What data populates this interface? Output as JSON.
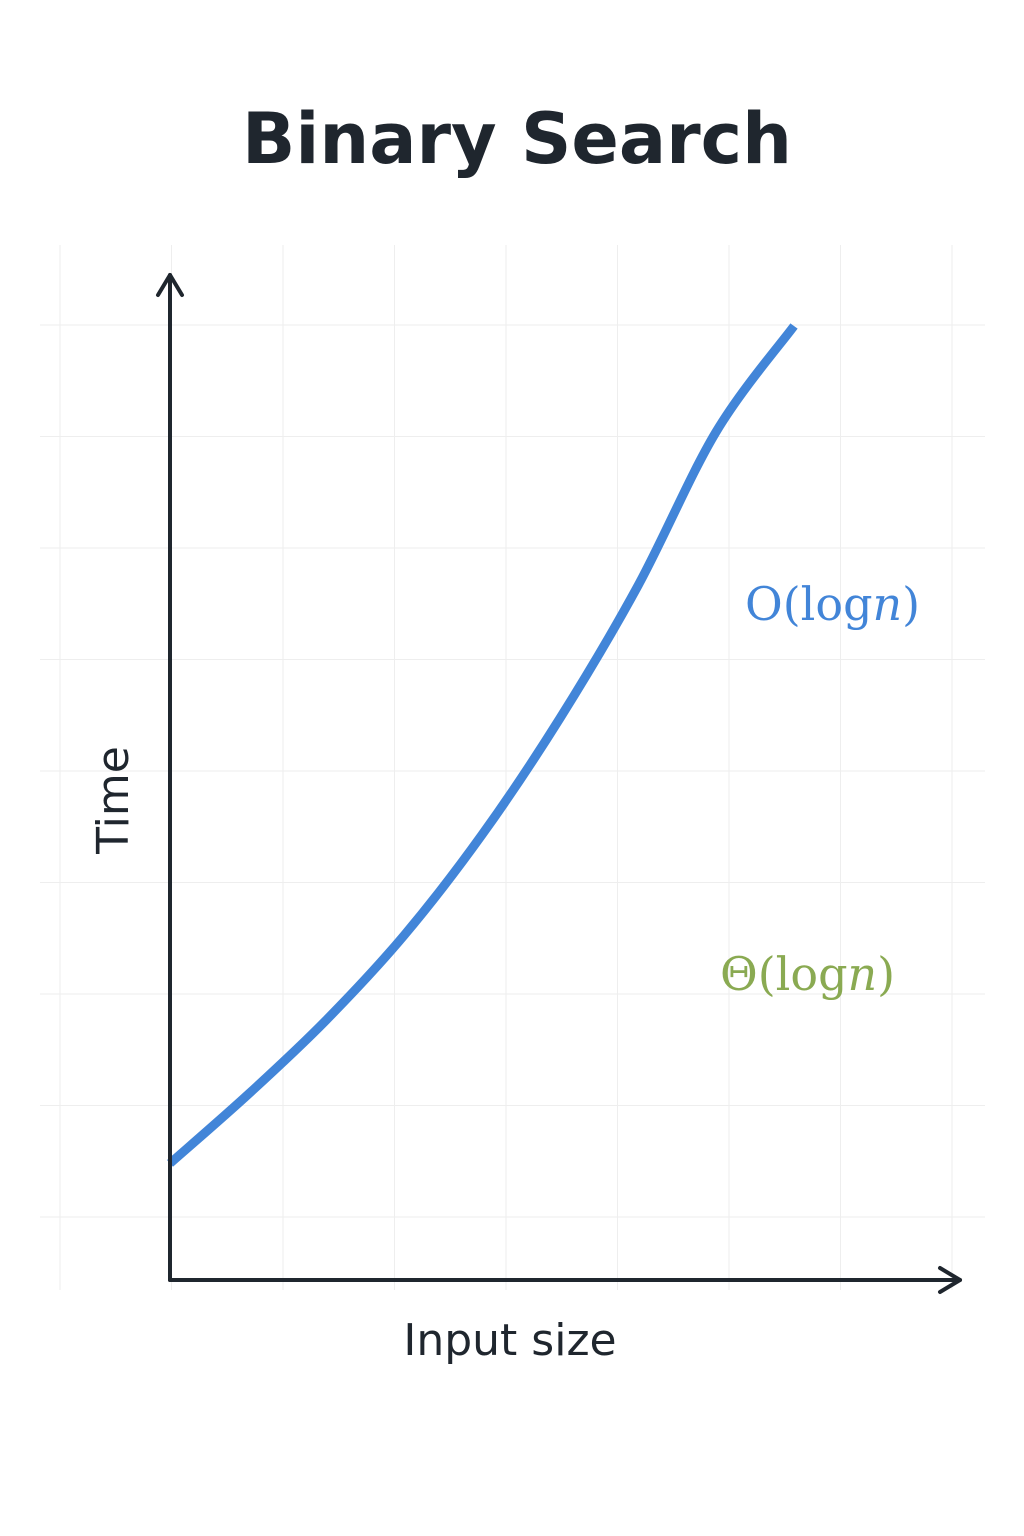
{
  "chart_data": {
    "type": "line",
    "title": "Binary Search",
    "xlabel": "Input size",
    "ylabel": "Time",
    "xlim": [
      0,
      1
    ],
    "ylim": [
      0,
      1
    ],
    "grid": true,
    "axis_ticks": false,
    "series": [
      {
        "color": "#4285d8",
        "x": [
          0.0,
          0.1,
          0.2,
          0.3,
          0.4,
          0.5,
          0.6,
          0.7,
          0.8
        ],
        "y": [
          0.11,
          0.175,
          0.245,
          0.325,
          0.42,
          0.53,
          0.655,
          0.8,
          0.9
        ]
      }
    ],
    "annotations": [
      {
        "prefix": "O(log",
        "var": "n",
        "suffix": ")",
        "color": "#4285d8"
      },
      {
        "prefix": "Θ(log",
        "var": "n",
        "suffix": ")",
        "color": "#8aaa52"
      }
    ]
  }
}
